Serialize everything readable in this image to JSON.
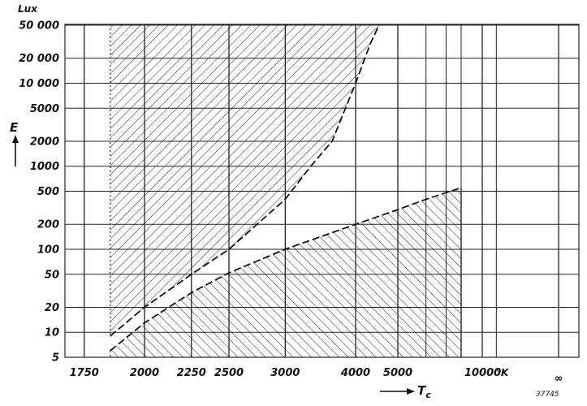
{
  "chart_data": {
    "type": "area",
    "x_scale": "reciprocal",
    "y_scale": "log",
    "grid": true,
    "legend": "none",
    "y_unit_label": "Lux",
    "y_axis_label": "E",
    "x_axis_label": "T",
    "x_axis_label_subscript": "c",
    "x_unit_label": "°K",
    "figure_number": "37745",
    "x_tick_labels": [
      "1750",
      "2000",
      "2250",
      "2500",
      "3000",
      "4000",
      "5000",
      "10000",
      "∞"
    ],
    "x_ticks": [
      1750,
      2000,
      2250,
      2500,
      3000,
      4000,
      5000,
      10000,
      null
    ],
    "x_extra_gridlines": [
      6000,
      7000,
      8000,
      12000
    ],
    "y_tick_labels": [
      "5",
      "10",
      "20",
      "50",
      "100",
      "200",
      "500",
      "1000",
      "2000",
      "5000",
      "10 000",
      "20 000",
      "50 000"
    ],
    "y_ticks": [
      5,
      10,
      20,
      50,
      100,
      200,
      500,
      1000,
      2000,
      5000,
      10000,
      20000,
      50000
    ],
    "ylim": [
      5,
      50000
    ],
    "series": [
      {
        "region": "upper",
        "hatch": "backslash",
        "x_min": 1850,
        "boundary": [
          [
            1850,
            9
          ],
          [
            2000,
            20
          ],
          [
            2250,
            50
          ],
          [
            2500,
            100
          ],
          [
            3000,
            400
          ],
          [
            3300,
            1000
          ],
          [
            3600,
            2000
          ],
          [
            4000,
            10000
          ],
          [
            4300,
            30000
          ],
          [
            4500,
            50000
          ]
        ]
      },
      {
        "region": "lower",
        "hatch": "slash",
        "x_min": 1850,
        "x_max": 8000,
        "boundary": [
          [
            1850,
            6
          ],
          [
            2000,
            13
          ],
          [
            2250,
            30
          ],
          [
            2500,
            52
          ],
          [
            3000,
            100
          ],
          [
            4000,
            200
          ],
          [
            5000,
            300
          ],
          [
            6000,
            400
          ],
          [
            8000,
            550
          ]
        ]
      }
    ]
  }
}
